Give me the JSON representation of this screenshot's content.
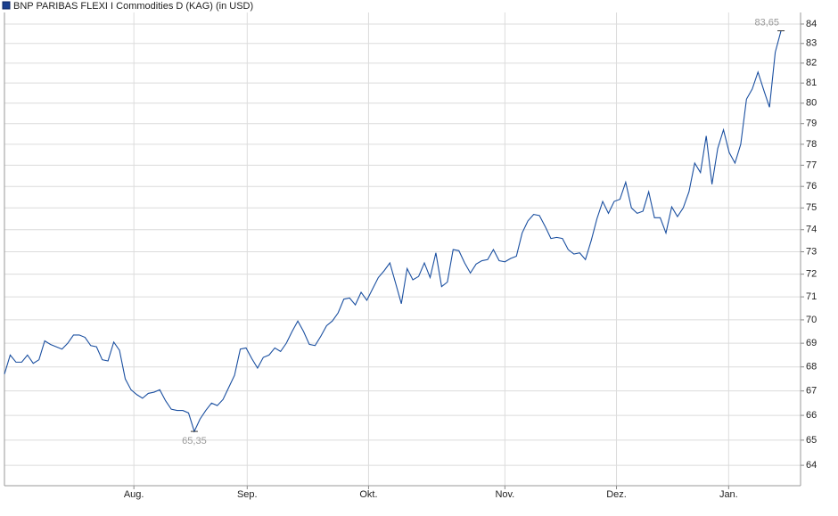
{
  "chart_data": {
    "type": "line",
    "series": [
      {
        "name": "BNP PARIBAS FLEXI I Commodities D (KAG) (in USD)",
        "color": "#1a4fa0",
        "values": [
          67.7,
          68.5,
          68.2,
          68.2,
          68.5,
          68.15,
          68.3,
          69.1,
          68.95,
          68.85,
          68.75,
          69.0,
          69.35,
          69.35,
          69.25,
          68.9,
          68.85,
          68.3,
          68.25,
          69.05,
          68.7,
          67.5,
          67.05,
          66.85,
          66.7,
          66.9,
          66.95,
          67.05,
          66.6,
          66.25,
          66.2,
          66.2,
          66.1,
          65.35,
          65.85,
          66.2,
          66.5,
          66.4,
          66.65,
          67.15,
          67.65,
          68.75,
          68.8,
          68.35,
          67.95,
          68.4,
          68.5,
          68.8,
          68.65,
          69.0,
          69.5,
          69.95,
          69.5,
          68.95,
          68.9,
          69.3,
          69.75,
          69.95,
          70.3,
          70.9,
          70.95,
          70.65,
          71.2,
          70.85,
          71.35,
          71.85,
          72.15,
          72.5,
          71.6,
          70.7,
          72.25,
          71.75,
          71.9,
          72.5,
          71.85,
          72.95,
          71.45,
          71.65,
          73.1,
          73.05,
          72.5,
          72.05,
          72.45,
          72.6,
          72.65,
          73.1,
          72.6,
          72.55,
          72.7,
          72.8,
          73.85,
          74.4,
          74.7,
          74.65,
          74.15,
          73.6,
          73.65,
          73.6,
          73.1,
          72.9,
          72.95,
          72.65,
          73.5,
          74.5,
          75.3,
          74.75,
          75.3,
          75.4,
          76.2,
          75.0,
          74.75,
          74.85,
          75.75,
          74.55,
          74.55,
          73.85,
          75.05,
          74.6,
          75.0,
          75.75,
          77.1,
          76.65,
          78.4,
          76.1,
          77.8,
          78.7,
          77.6,
          77.1,
          78.0,
          80.2,
          80.7,
          81.55,
          80.65,
          79.8,
          82.55,
          83.65
        ]
      }
    ],
    "max_label": "83,65",
    "min_label": "65,35",
    "xlim": [
      0,
      138.4
    ],
    "xticks": [
      {
        "value": 22.5,
        "label": "Aug."
      },
      {
        "value": 42.2,
        "label": "Sep."
      },
      {
        "value": 63.3,
        "label": "Okt."
      },
      {
        "value": 87,
        "label": "Nov."
      },
      {
        "value": 106.4,
        "label": "Dez."
      },
      {
        "value": 125.9,
        "label": "Jan."
      }
    ],
    "ylim": [
      63.2,
      84.6
    ],
    "log_scale": true,
    "yticks": [
      64,
      65,
      66,
      67,
      68,
      69,
      70,
      71,
      72,
      73,
      74,
      75,
      76,
      77,
      78,
      79,
      80,
      81,
      82,
      83,
      84
    ],
    "grid": true,
    "legend": "top-left"
  }
}
